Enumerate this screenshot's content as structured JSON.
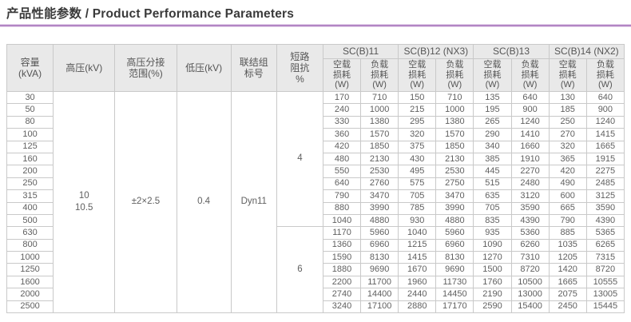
{
  "title": "产品性能参数 / Product Performance Parameters",
  "accent_color": "#b286c4",
  "table": {
    "left_headers": [
      "容量\n(kVA)",
      "高压(kV)",
      "高压分接\n范围(%)",
      "低压(kV)",
      "联结组\n标号",
      "短路\n阻抗\n%"
    ],
    "group_headers": [
      "SC(B)11",
      "SC(B)12 (NX3)",
      "SC(B)13",
      "SC(B)14 (NX2)"
    ],
    "sub_headers": [
      "空载\n损耗\n(W)",
      "负载\n损耗\n(W)"
    ],
    "merged": {
      "hv_value": "10\n10.5",
      "tap_range_value": "±2×2.5",
      "lv_value": "0.4",
      "vector_group_value": "Dyn11",
      "impedance_values": [
        "4",
        "6"
      ],
      "impedance_row_spans": [
        11,
        7
      ]
    },
    "rows": [
      {
        "capacity": "30",
        "values": [
          "170",
          "710",
          "150",
          "710",
          "135",
          "640",
          "130",
          "640"
        ]
      },
      {
        "capacity": "50",
        "values": [
          "240",
          "1000",
          "215",
          "1000",
          "195",
          "900",
          "185",
          "900"
        ]
      },
      {
        "capacity": "80",
        "values": [
          "330",
          "1380",
          "295",
          "1380",
          "265",
          "1240",
          "250",
          "1240"
        ]
      },
      {
        "capacity": "100",
        "values": [
          "360",
          "1570",
          "320",
          "1570",
          "290",
          "1410",
          "270",
          "1415"
        ]
      },
      {
        "capacity": "125",
        "values": [
          "420",
          "1850",
          "375",
          "1850",
          "340",
          "1660",
          "320",
          "1665"
        ]
      },
      {
        "capacity": "160",
        "values": [
          "480",
          "2130",
          "430",
          "2130",
          "385",
          "1910",
          "365",
          "1915"
        ]
      },
      {
        "capacity": "200",
        "values": [
          "550",
          "2530",
          "495",
          "2530",
          "445",
          "2270",
          "420",
          "2275"
        ]
      },
      {
        "capacity": "250",
        "values": [
          "640",
          "2760",
          "575",
          "2750",
          "515",
          "2480",
          "490",
          "2485"
        ]
      },
      {
        "capacity": "315",
        "values": [
          "790",
          "3470",
          "705",
          "3470",
          "635",
          "3120",
          "600",
          "3125"
        ]
      },
      {
        "capacity": "400",
        "values": [
          "880",
          "3990",
          "785",
          "3990",
          "705",
          "3590",
          "665",
          "3590"
        ]
      },
      {
        "capacity": "500",
        "values": [
          "1040",
          "4880",
          "930",
          "4880",
          "835",
          "4390",
          "790",
          "4390"
        ]
      },
      {
        "capacity": "630",
        "values": [
          "1170",
          "5960",
          "1040",
          "5960",
          "935",
          "5360",
          "885",
          "5365"
        ]
      },
      {
        "capacity": "800",
        "values": [
          "1360",
          "6960",
          "1215",
          "6960",
          "1090",
          "6260",
          "1035",
          "6265"
        ]
      },
      {
        "capacity": "1000",
        "values": [
          "1590",
          "8130",
          "1415",
          "8130",
          "1270",
          "7310",
          "1205",
          "7315"
        ]
      },
      {
        "capacity": "1250",
        "values": [
          "1880",
          "9690",
          "1670",
          "9690",
          "1500",
          "8720",
          "1420",
          "8720"
        ]
      },
      {
        "capacity": "1600",
        "values": [
          "2200",
          "11700",
          "1960",
          "11730",
          "1760",
          "10500",
          "1665",
          "10555"
        ]
      },
      {
        "capacity": "2000",
        "values": [
          "2740",
          "14400",
          "2440",
          "14450",
          "2190",
          "13000",
          "2075",
          "13005"
        ]
      },
      {
        "capacity": "2500",
        "values": [
          "3240",
          "17100",
          "2880",
          "17170",
          "2590",
          "15400",
          "2450",
          "15445"
        ]
      }
    ]
  }
}
